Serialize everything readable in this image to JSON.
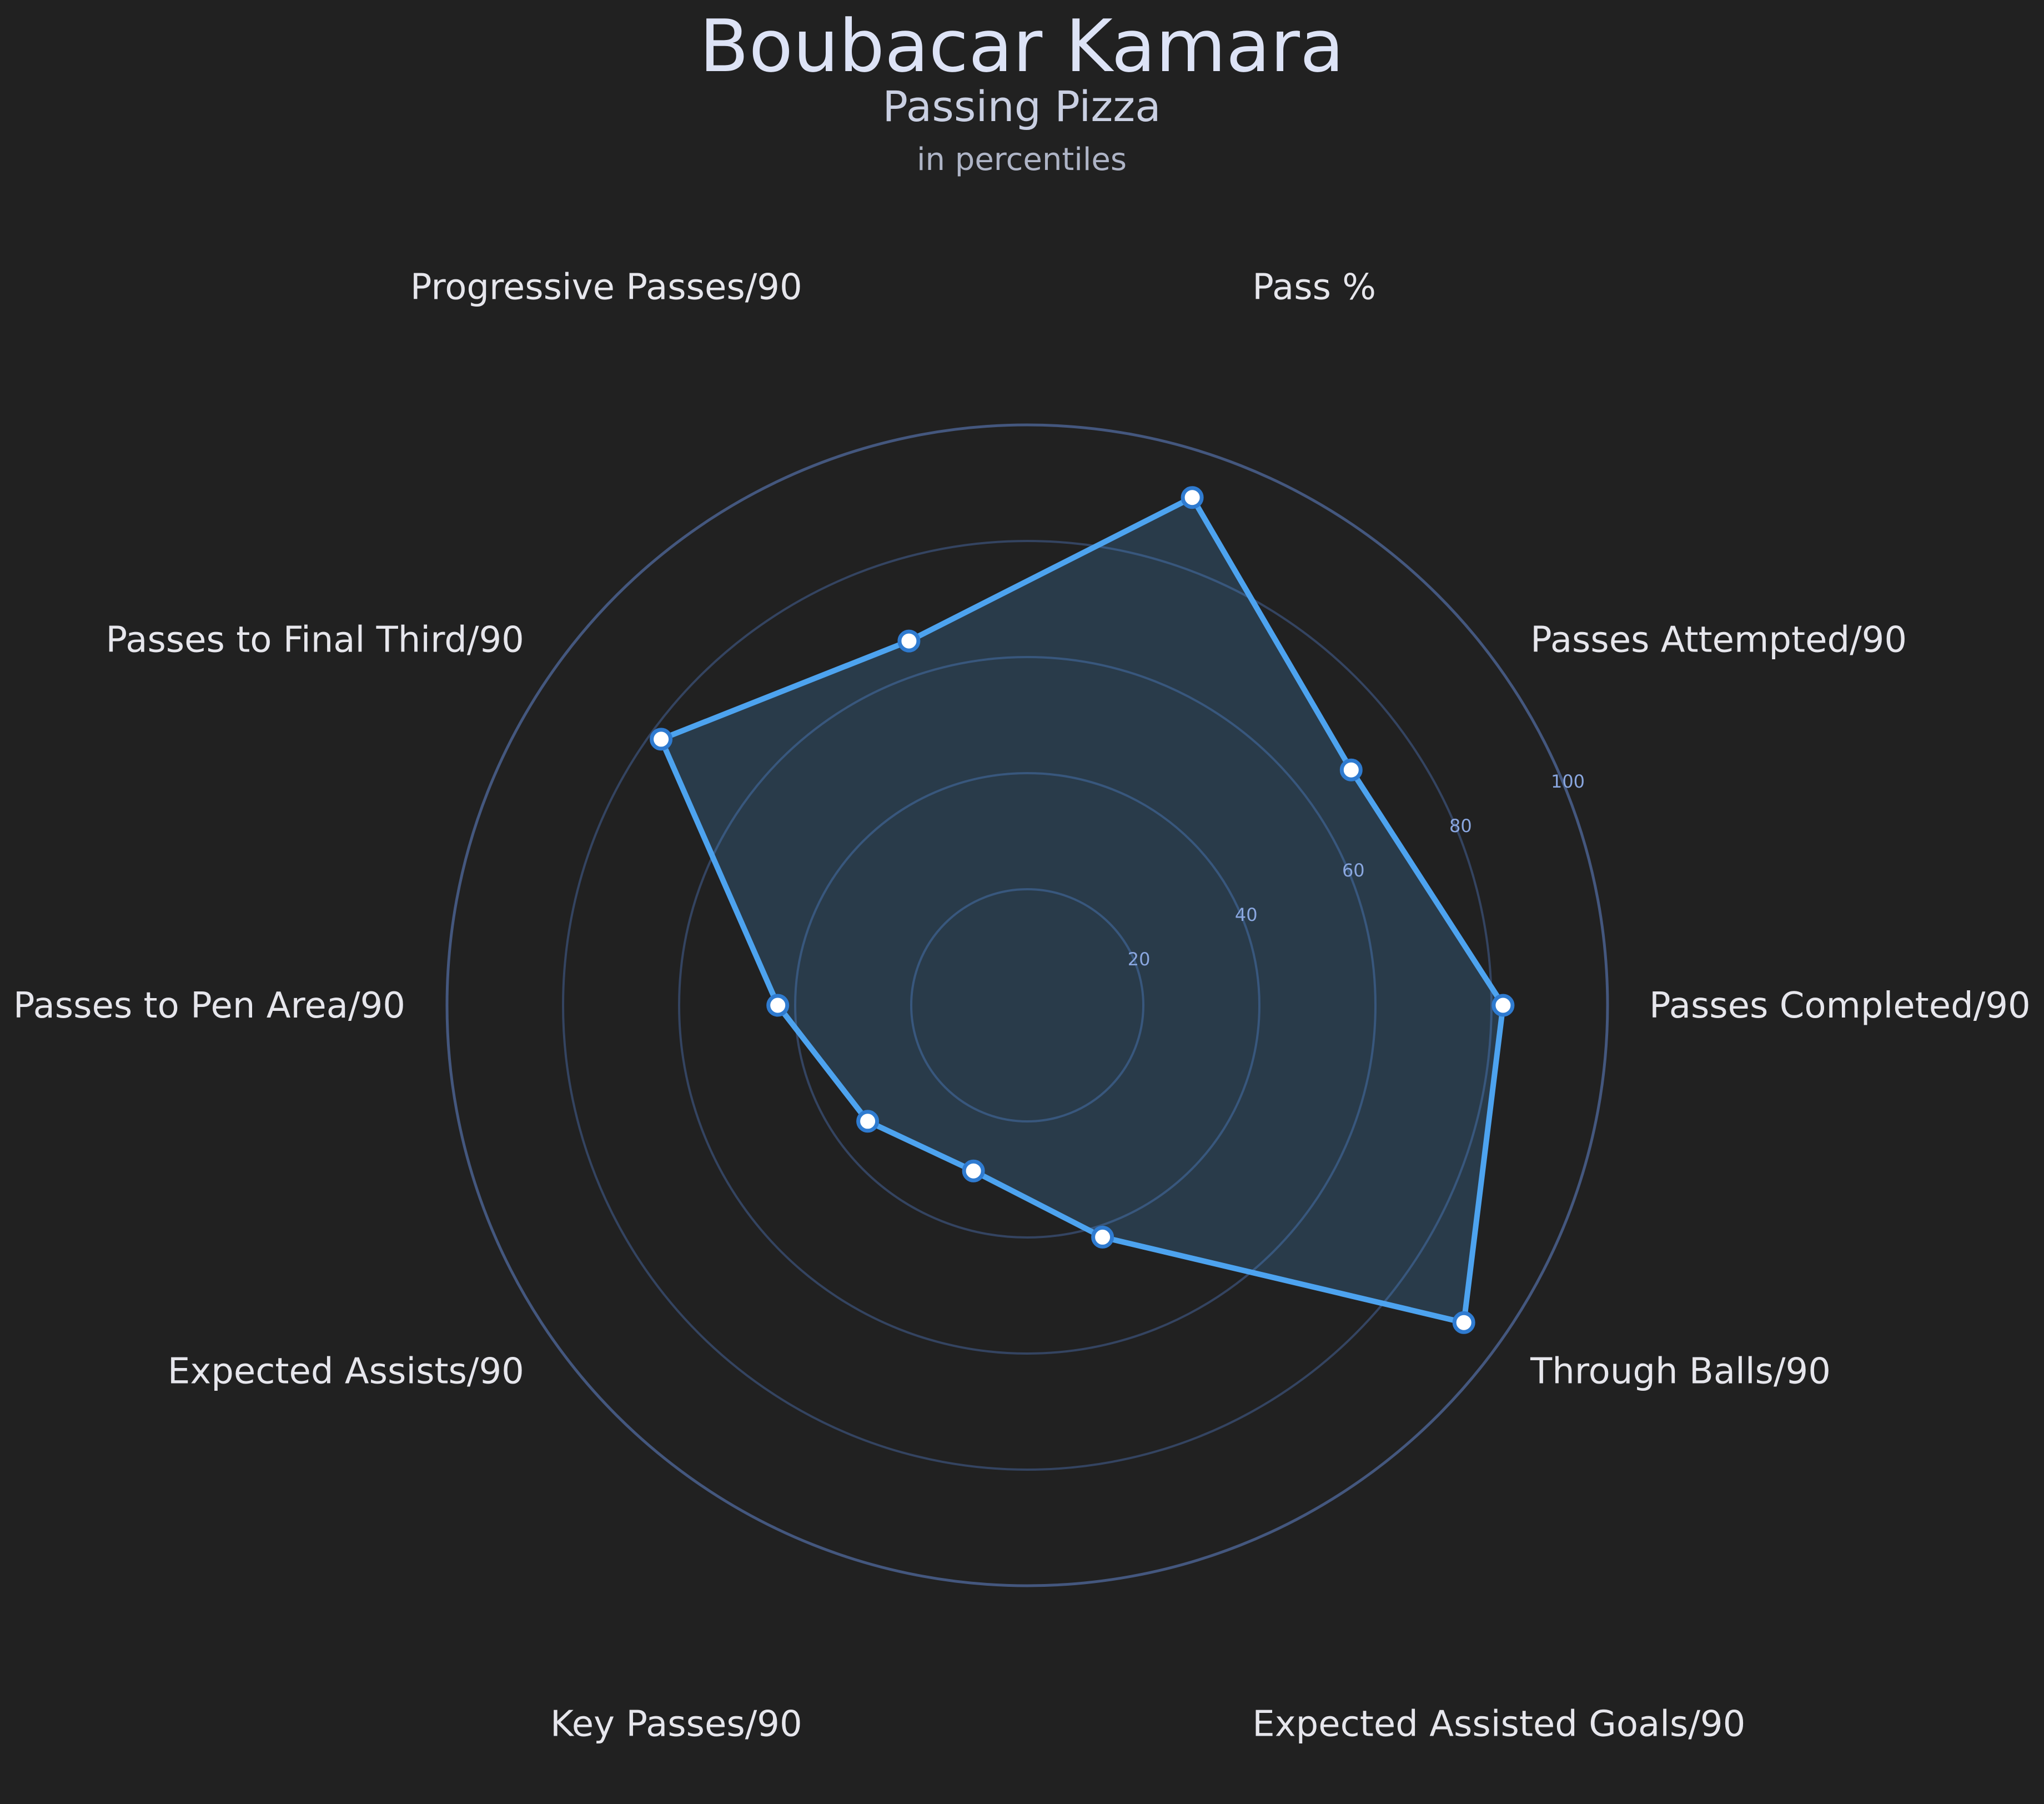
{
  "chart_data": {
    "type": "radar",
    "title": "Boubacar Kamara",
    "subtitle": "Passing Pizza",
    "note": "in percentiles",
    "categories": [
      "Pass %",
      "Passes Attempted/90",
      "Passes Completed/90",
      "Through Balls/90",
      "Expected Assisted Goals/90",
      "Key Passes/90",
      "Expected Assists/90",
      "Passes to Pen Area/90",
      "Passes to Final Third/90",
      "Progressive Passes/90"
    ],
    "values": [
      92,
      69,
      82,
      93,
      42,
      30,
      34,
      43,
      78,
      66
    ],
    "rlim": [
      0,
      100
    ],
    "radial_ticks": [
      20,
      40,
      60,
      80,
      100
    ],
    "grid": true,
    "colors": {
      "background": "#212121",
      "series_line": "#4da3ef",
      "series_fill": "#2a3a52",
      "grid_outer": "#44577e",
      "grid_inner": "#344461",
      "tick_label": "#8aa7e0",
      "marker_face": "#ffffff",
      "marker_edge": "#2f7bd0"
    }
  }
}
